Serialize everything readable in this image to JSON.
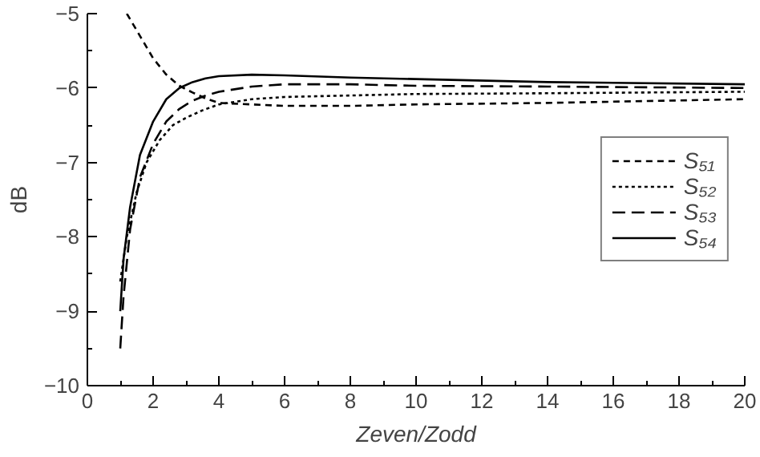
{
  "chart_data": {
    "type": "line",
    "xlabel": "Zeven/Zodd",
    "ylabel": "dB",
    "xlim": [
      0,
      20
    ],
    "ylim": [
      -10,
      -5
    ],
    "xticks": [
      0,
      2,
      4,
      6,
      8,
      10,
      12,
      14,
      16,
      18,
      20
    ],
    "yticks": [
      -10,
      -9,
      -8,
      -7,
      -6,
      -5
    ],
    "grid": false,
    "legend": "right",
    "marker": "none",
    "series": [
      {
        "name": "S₅₁",
        "color": "#000000",
        "line_style": "dashed",
        "x": [
          1.2,
          1.6,
          2.0,
          2.4,
          2.8,
          3.2,
          3.6,
          4.0,
          5.0,
          6.0,
          8.0,
          10.0,
          14.0,
          20.0
        ],
        "values": [
          -5.0,
          -5.3,
          -5.6,
          -5.82,
          -5.97,
          -6.06,
          -6.14,
          -6.2,
          -6.22,
          -6.24,
          -6.24,
          -6.22,
          -6.2,
          -6.15
        ]
      },
      {
        "name": "S₅₂",
        "color": "#000000",
        "line_style": "dotted",
        "x": [
          1.0,
          1.2,
          1.5,
          1.8,
          2.2,
          2.6,
          3.0,
          3.5,
          4.0,
          5.0,
          6.0,
          8.0,
          10.0,
          14.0,
          20.0
        ],
        "values": [
          -8.6,
          -8.0,
          -7.4,
          -7.0,
          -6.7,
          -6.5,
          -6.4,
          -6.3,
          -6.22,
          -6.15,
          -6.12,
          -6.1,
          -6.08,
          -6.07,
          -6.05
        ]
      },
      {
        "name": "S₅₃",
        "color": "#000000",
        "line_style": "dashed2",
        "x": [
          1.0,
          1.1,
          1.3,
          1.6,
          2.0,
          2.4,
          2.8,
          3.2,
          3.6,
          4.0,
          5.0,
          6.0,
          8.0,
          10.0,
          14.0,
          20.0
        ],
        "values": [
          -9.5,
          -8.8,
          -7.9,
          -7.2,
          -6.75,
          -6.45,
          -6.28,
          -6.17,
          -6.1,
          -6.05,
          -5.98,
          -5.95,
          -5.95,
          -5.97,
          -5.98,
          -6.0
        ]
      },
      {
        "name": "S₅₄",
        "color": "#000000",
        "line_style": "solid",
        "x": [
          1.0,
          1.1,
          1.3,
          1.6,
          2.0,
          2.4,
          2.8,
          3.2,
          3.6,
          4.0,
          5.0,
          6.0,
          8.0,
          10.0,
          14.0,
          20.0
        ],
        "values": [
          -9.0,
          -8.3,
          -7.6,
          -6.9,
          -6.45,
          -6.15,
          -6.0,
          -5.92,
          -5.87,
          -5.84,
          -5.82,
          -5.83,
          -5.86,
          -5.88,
          -5.92,
          -5.95
        ]
      }
    ]
  }
}
